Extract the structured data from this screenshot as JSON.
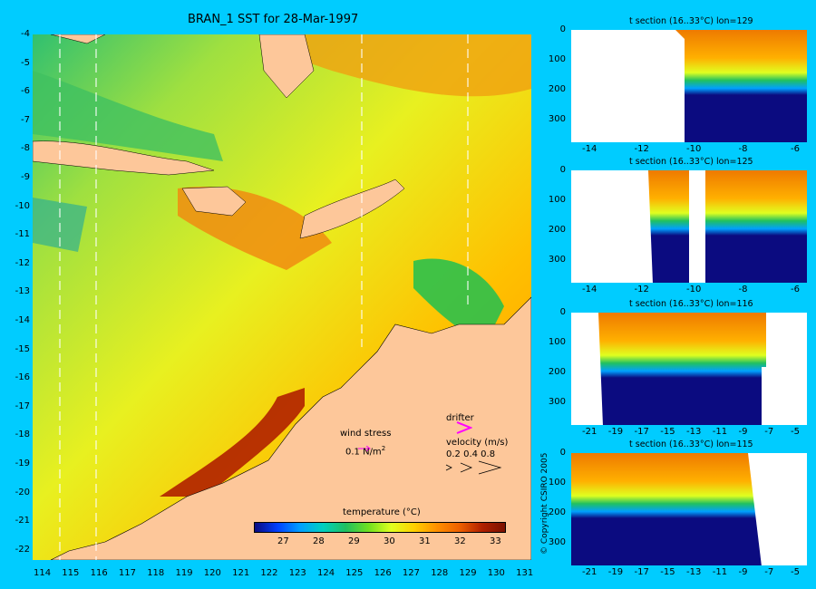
{
  "map": {
    "title": "BRAN_1 SST for 28-Mar-1997",
    "lat_ticks": [
      "-4",
      "-5",
      "-6",
      "-7",
      "-8",
      "-9",
      "-10",
      "-11",
      "-12",
      "-13",
      "-14",
      "-15",
      "-16",
      "-17",
      "-18",
      "-19",
      "-20",
      "-21",
      "-22"
    ],
    "lon_ticks": [
      "114",
      "115",
      "116",
      "117",
      "118",
      "119",
      "120",
      "121",
      "122",
      "123",
      "124",
      "125",
      "126",
      "127",
      "128",
      "129",
      "130",
      "131"
    ],
    "wind_stress_label": "wind stress",
    "wind_stress_value": "0.1 N/m",
    "wind_stress_exp": "2",
    "drifter_label": "drifter",
    "velocity_label": "velocity (m/s)",
    "velocity_values": "0.2 0.4 0.8",
    "colorbar_title": "temperature (°C)",
    "colorbar_ticks": [
      "27",
      "28",
      "29",
      "30",
      "31",
      "32",
      "33"
    ],
    "colors": {
      "background": "#00ccff",
      "land": "#fdc79a",
      "drifter": "#ff00ff",
      "colorbar": [
        "#0b0b80",
        "#0040ff",
        "#00a0ff",
        "#00d0c0",
        "#20c060",
        "#70e020",
        "#e0ff20",
        "#ffd000",
        "#ff9000",
        "#ee6000",
        "#b02000",
        "#7a1000"
      ]
    }
  },
  "copyright": "© Copyright CSIRO 2005",
  "sections": [
    {
      "title": "t section (16..33°C) lon=129",
      "x_ticks": [
        "-14",
        "-12",
        "-10",
        "-8",
        "-6"
      ],
      "y_ticks": [
        "0",
        "100",
        "200",
        "300"
      ]
    },
    {
      "title": "t section (16..33°C) lon=125",
      "x_ticks": [
        "-14",
        "-12",
        "-10",
        "-8",
        "-6"
      ],
      "y_ticks": [
        "0",
        "100",
        "200",
        "300"
      ]
    },
    {
      "title": "t section (16..33°C) lon=116",
      "x_ticks": [
        "-21",
        "-19",
        "-17",
        "-15",
        "-13",
        "-11",
        "-9",
        "-7",
        "-5"
      ],
      "y_ticks": [
        "0",
        "100",
        "200",
        "300"
      ]
    },
    {
      "title": "t section (16..33°C) lon=115",
      "x_ticks": [
        "-21",
        "-19",
        "-17",
        "-15",
        "-13",
        "-11",
        "-9",
        "-7",
        "-5"
      ],
      "y_ticks": [
        "0",
        "100",
        "200",
        "300"
      ]
    }
  ]
}
